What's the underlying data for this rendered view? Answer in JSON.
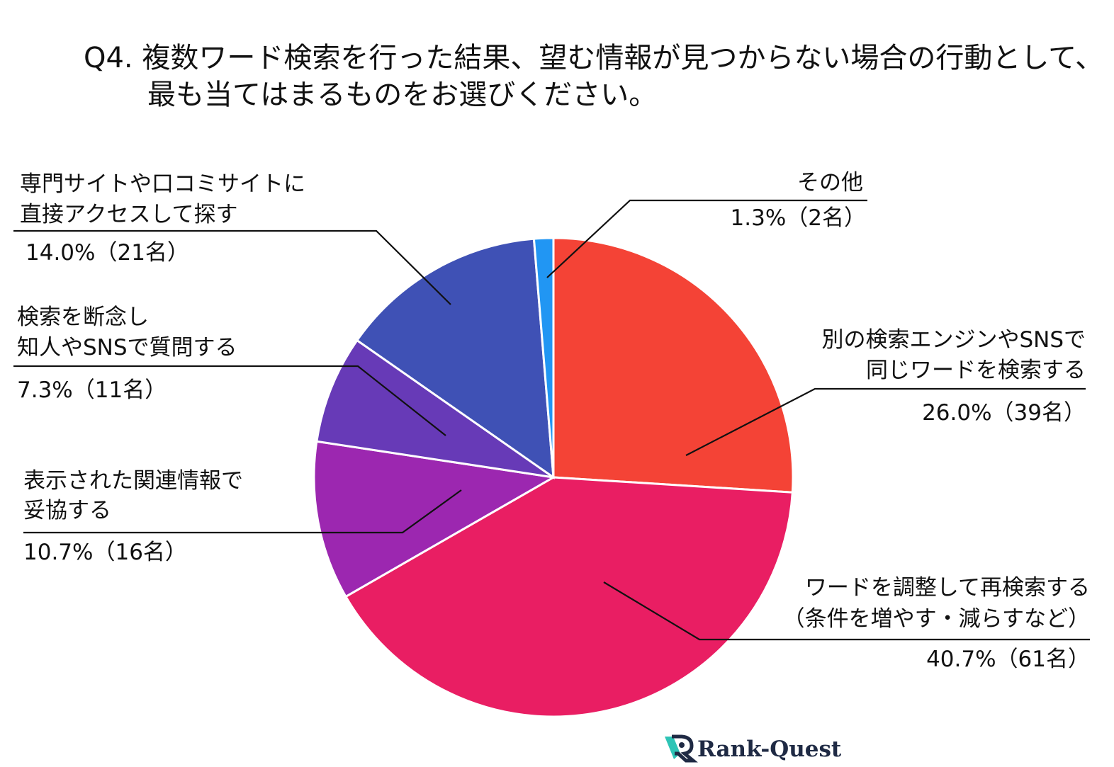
{
  "chart_data": {
    "type": "pie",
    "title_lines": [
      "Q4. 複数ワード検索を行った結果、望む情報が見つからない場合の行動として、",
      "最も当てはまるものをお選びください。"
    ],
    "slices": [
      {
        "label_lines": [
          "別の検索エンジンやSNSで",
          "同じワードを検索する"
        ],
        "value_text": "26.0%（39名）",
        "percent": 26.0,
        "count": 39,
        "color": "#f44336"
      },
      {
        "label_lines": [
          "ワードを調整して再検索する",
          "（条件を増やす・減らすなど）"
        ],
        "value_text": "40.7%（61名）",
        "percent": 40.7,
        "count": 61,
        "color": "#e91e63"
      },
      {
        "label_lines": [
          "表示された関連情報で",
          "妥協する"
        ],
        "value_text": "10.7%（16名）",
        "percent": 10.7,
        "count": 16,
        "color": "#9c27b0"
      },
      {
        "label_lines": [
          "検索を断念し",
          "知人やSNSで質問する"
        ],
        "value_text": "7.3%（11名）",
        "percent": 7.3,
        "count": 11,
        "color": "#673ab7"
      },
      {
        "label_lines": [
          "専門サイトや口コミサイトに",
          "直接アクセスして探す"
        ],
        "value_text": "14.0%（21名）",
        "percent": 14.0,
        "count": 21,
        "color": "#3f51b5"
      },
      {
        "label_lines": [
          "その他"
        ],
        "value_text": "1.3%（2名）",
        "percent": 1.3,
        "count": 2,
        "color": "#2196f3"
      }
    ]
  },
  "brand": {
    "name": "Rank-Quest",
    "icon": "rank-quest-logo-icon"
  }
}
